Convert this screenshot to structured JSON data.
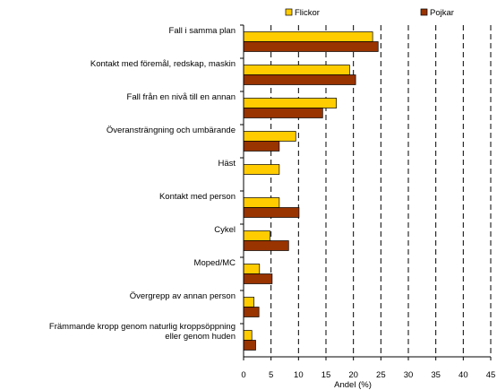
{
  "chart_data": {
    "type": "bar",
    "orientation": "horizontal",
    "title": "",
    "xlabel": "Andel (%)",
    "ylabel": "",
    "xlim": [
      0,
      45
    ],
    "xticks": [
      0,
      5,
      10,
      15,
      20,
      25,
      30,
      35,
      40,
      45
    ],
    "grid": "vertical dashed",
    "legend": "top",
    "categories": [
      "Fall i samma plan",
      "Kontakt med föremål, redskap, maskin",
      "Fall från en nivå till en annan",
      "Överansträngning och umbärande",
      "Häst",
      "Kontakt med person",
      "Cykel",
      "Moped/MC",
      "Övergrepp av annan person",
      "Främmande kropp genom naturlig kroppsöppning eller genom huden"
    ],
    "category_lines": [
      [
        "Fall i samma plan"
      ],
      [
        "Kontakt med föremål, redskap, maskin"
      ],
      [
        "Fall från en nivå till en annan"
      ],
      [
        "Överansträngning och umbärande"
      ],
      [
        "Häst"
      ],
      [
        "Kontakt med person"
      ],
      [
        "Cykel"
      ],
      [
        "Moped/MC"
      ],
      [
        "Övergrepp av annan person"
      ],
      [
        "Främmande kropp genom naturlig kroppsöppning",
        "eller genom huden"
      ]
    ],
    "series": [
      {
        "name": "Flickor",
        "color": "#FFCC00",
        "values": [
          23.5,
          19.3,
          16.9,
          9.5,
          6.5,
          6.5,
          4.8,
          2.9,
          1.9,
          1.5
        ]
      },
      {
        "name": "Pojkar",
        "color": "#993300",
        "values": [
          24.5,
          20.4,
          14.4,
          6.5,
          0,
          10.1,
          8.2,
          5.2,
          2.8,
          2.2
        ]
      }
    ]
  }
}
